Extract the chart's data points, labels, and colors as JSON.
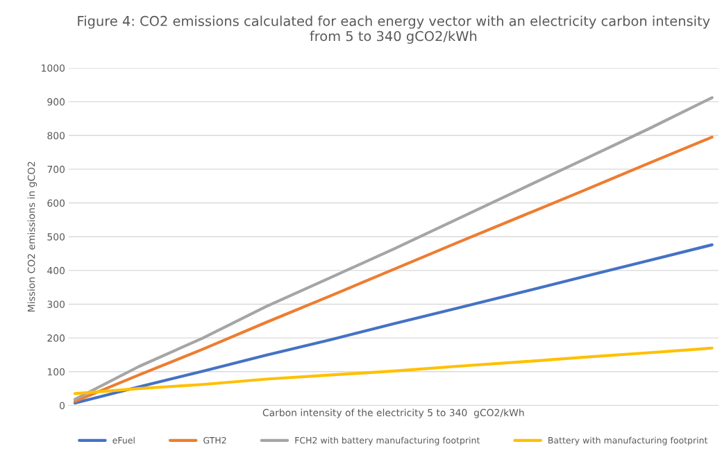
{
  "chart_data": {
    "type": "line",
    "title": "Figure 4: CO2 emissions calculated for each energy vector with an electricity carbon intensity\nfrom 5 to 340 gCO2/kWh",
    "xlabel": "Carbon intensity of the electricity 5 to 340  gCO2/kWh",
    "ylabel": "Mission CO2 emissions in gCO2",
    "categories": [
      null,
      null,
      null,
      null,
      null,
      null,
      null,
      null,
      null,
      null,
      null
    ],
    "series": [
      {
        "name": "eFuel",
        "color": "#4472c4",
        "values": [
          7,
          55,
          101,
          149,
          194,
          242,
          288,
          335,
          382,
          429,
          476
        ]
      },
      {
        "name": "GTH2",
        "color": "#ed7d31",
        "values": [
          12,
          90,
          166,
          246,
          324,
          403,
          482,
          560,
          638,
          717,
          795
        ]
      },
      {
        "name": "FCH2 with battery manufacturing footprint",
        "color": "#a5a5a5",
        "values": [
          18,
          115,
          199,
          293,
          378,
          463,
          552,
          641,
          730,
          819,
          912
        ]
      },
      {
        "name": "Battery with manufacturing footprint",
        "color": "#ffc000",
        "values": [
          35,
          50,
          62,
          78,
          90,
          102,
          116,
          129,
          143,
          156,
          170
        ]
      }
    ],
    "ylim": [
      0,
      1000
    ],
    "yticks": [
      0,
      100,
      200,
      300,
      400,
      500,
      600,
      700,
      800,
      900,
      1000
    ],
    "grid": "y",
    "legend": "bottom",
    "marker": "none",
    "line_style": "solid"
  }
}
